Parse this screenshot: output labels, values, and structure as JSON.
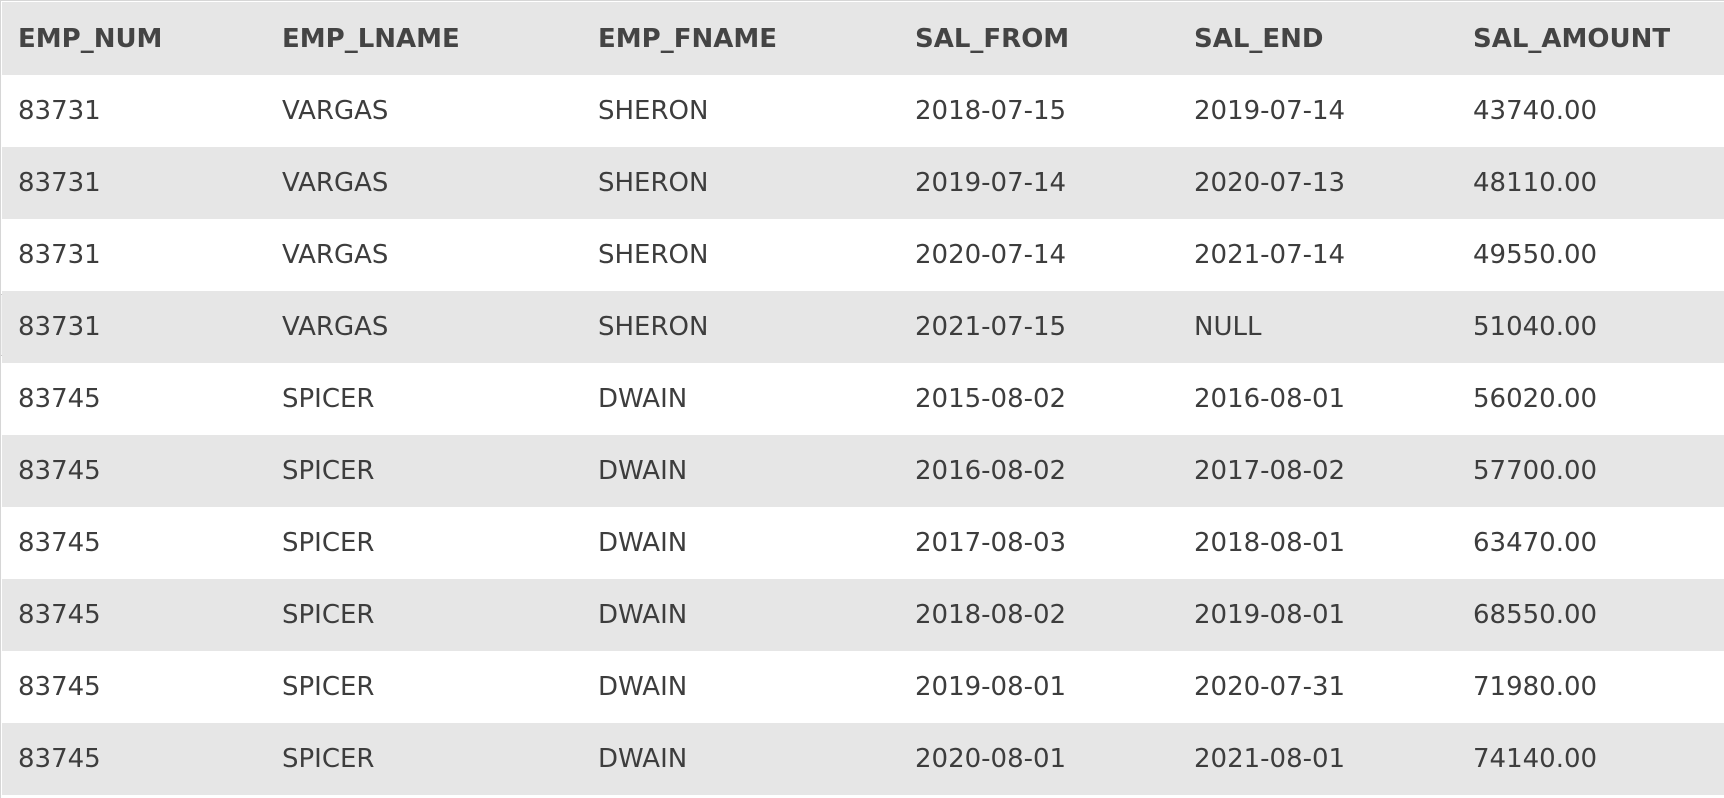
{
  "table": {
    "columns": [
      "EMP_NUM",
      "EMP_LNAME",
      "EMP_FNAME",
      "SAL_FROM",
      "SAL_END",
      "SAL_AMOUNT"
    ],
    "rows": [
      [
        "83731",
        "VARGAS",
        "SHERON",
        "2018-07-15",
        "2019-07-14",
        "43740.00"
      ],
      [
        "83731",
        "VARGAS",
        "SHERON",
        "2019-07-14",
        "2020-07-13",
        "48110.00"
      ],
      [
        "83731",
        "VARGAS",
        "SHERON",
        "2020-07-14",
        "2021-07-14",
        "49550.00"
      ],
      [
        "83731",
        "VARGAS",
        "SHERON",
        "2021-07-15",
        "NULL",
        "51040.00"
      ],
      [
        "83745",
        "SPICER",
        "DWAIN",
        "2015-08-02",
        "2016-08-01",
        "56020.00"
      ],
      [
        "83745",
        "SPICER",
        "DWAIN",
        "2016-08-02",
        "2017-08-02",
        "57700.00"
      ],
      [
        "83745",
        "SPICER",
        "DWAIN",
        "2017-08-03",
        "2018-08-01",
        "63470.00"
      ],
      [
        "83745",
        "SPICER",
        "DWAIN",
        "2018-08-02",
        "2019-08-01",
        "68550.00"
      ],
      [
        "83745",
        "SPICER",
        "DWAIN",
        "2019-08-01",
        "2020-07-31",
        "71980.00"
      ],
      [
        "83745",
        "SPICER",
        "DWAIN",
        "2020-08-01",
        "2021-08-01",
        "74140.00"
      ]
    ]
  },
  "colors": {
    "header_background": "#e6e6e6",
    "row_stripe": "#e6e6e6",
    "row_background": "#ffffff",
    "text": "#3c3c3c"
  }
}
